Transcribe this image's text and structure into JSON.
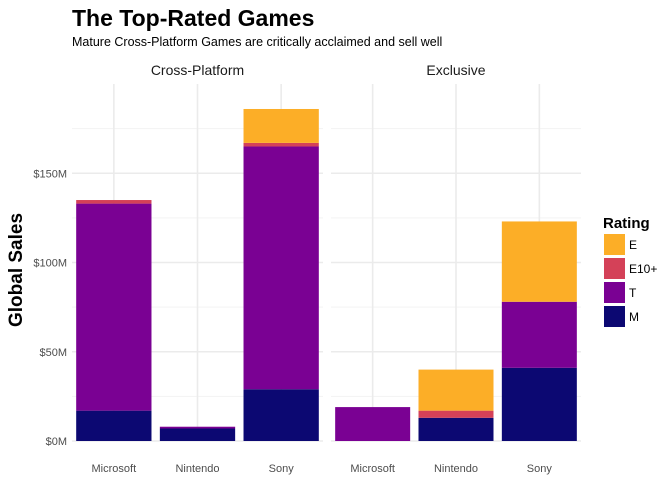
{
  "chart_data": {
    "type": "bar",
    "stacked": true,
    "title": "The Top-Rated Games",
    "subtitle": "Mature Cross-Platform Games are critically acclaimed and sell well",
    "ylabel": "Global Sales",
    "xlabel": "",
    "ylim": [
      0,
      200
    ],
    "yticks": [
      0,
      50,
      100,
      150
    ],
    "ytick_labels": [
      "$0M",
      "$50M",
      "$100M",
      "$150M"
    ],
    "grid": true,
    "legend": {
      "title": "Rating",
      "position": "right",
      "entries": [
        "E",
        "E10+",
        "T",
        "M"
      ]
    },
    "colors": {
      "E": "#fcae27",
      "E10+": "#d44158",
      "T": "#7a0193",
      "M": "#0c0872"
    },
    "stack_order": [
      "M",
      "T",
      "E10+",
      "E"
    ],
    "categories": [
      "Microsoft",
      "Nintendo",
      "Sony"
    ],
    "facets": [
      {
        "name": "Cross-Platform",
        "series": [
          {
            "name": "M",
            "values": [
              17,
              7,
              29
            ]
          },
          {
            "name": "T",
            "values": [
              116,
              1,
              136
            ]
          },
          {
            "name": "E10+",
            "values": [
              2,
              0,
              2
            ]
          },
          {
            "name": "E",
            "values": [
              0,
              0,
              19
            ]
          }
        ]
      },
      {
        "name": "Exclusive",
        "series": [
          {
            "name": "M",
            "values": [
              0,
              13,
              41
            ]
          },
          {
            "name": "T",
            "values": [
              19,
              0,
              37
            ]
          },
          {
            "name": "E10+",
            "values": [
              0,
              4,
              0
            ]
          },
          {
            "name": "E",
            "values": [
              0,
              23,
              45
            ]
          }
        ]
      }
    ]
  }
}
